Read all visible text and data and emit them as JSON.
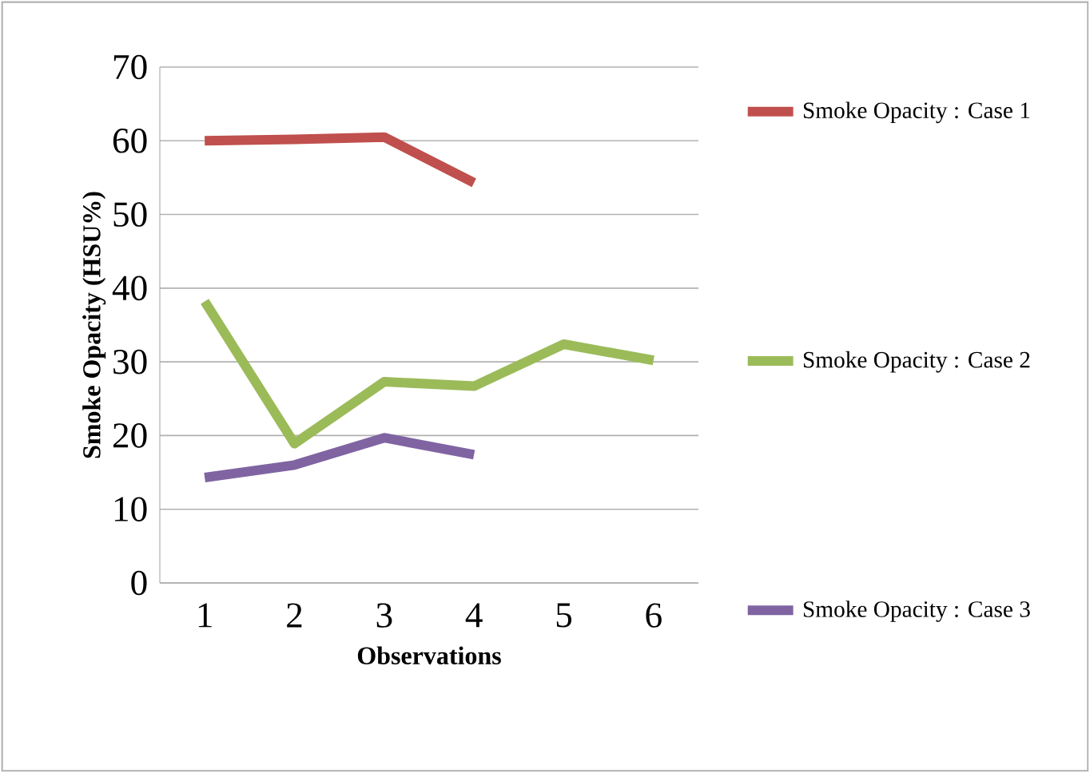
{
  "chart_data": {
    "type": "line",
    "xlabel": "Observations",
    "ylabel": "Smoke Opacity (HSU%)",
    "categories": [
      "1",
      "2",
      "3",
      "4",
      "5",
      "6"
    ],
    "series": [
      {
        "name": "Smoke Opacity  : Case 1",
        "color": "#c0504d",
        "values": [
          60.0,
          60.2,
          60.5,
          54.3,
          null,
          null
        ]
      },
      {
        "name": "Smoke Opacity  : Case 2",
        "color": "#9bbb59",
        "values": [
          38.2,
          18.9,
          27.3,
          26.7,
          32.4,
          30.2
        ]
      },
      {
        "name": "Smoke Opacity  : Case 3",
        "color": "#8064a2",
        "values": [
          14.3,
          16.0,
          19.7,
          17.4,
          null,
          null
        ]
      }
    ],
    "ylim": [
      0,
      70
    ],
    "yticks": [
      0,
      10,
      20,
      30,
      40,
      50,
      60,
      70
    ],
    "grid": "y",
    "legend": "right",
    "marker": "none",
    "line_style": "solid"
  }
}
